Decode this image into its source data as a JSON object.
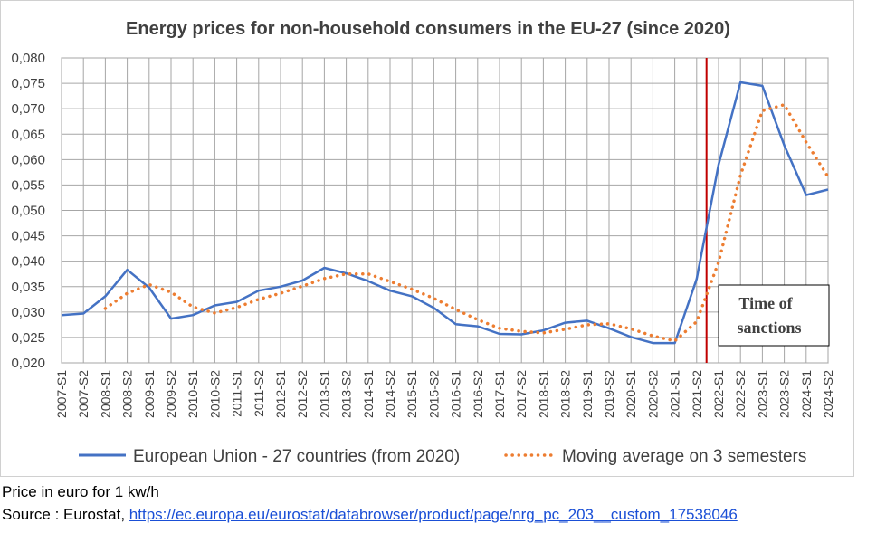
{
  "chart_data": {
    "type": "line",
    "title": "Energy prices for non-household consumers in the EU-27 (since 2020)",
    "categories": [
      "2007-S1",
      "2007-S2",
      "2008-S1",
      "2008-S2",
      "2009-S1",
      "2009-S2",
      "2010-S1",
      "2010-S2",
      "2011-S1",
      "2011-S2",
      "2012-S1",
      "2012-S2",
      "2013-S1",
      "2013-S2",
      "2014-S1",
      "2014-S2",
      "2015-S1",
      "2015-S2",
      "2016-S1",
      "2016-S2",
      "2017-S1",
      "2017-S2",
      "2018-S1",
      "2018-S2",
      "2019-S1",
      "2019-S2",
      "2020-S1",
      "2020-S2",
      "2021-S1",
      "2021-S2",
      "2022-S1",
      "2022-S2",
      "2023-S1",
      "2023-S2",
      "2024-S1",
      "2024-S2"
    ],
    "series": [
      {
        "name": "European Union - 27 countries (from 2020)",
        "color": "#4472c4",
        "style": "solid",
        "values": [
          0.0294,
          0.0297,
          0.0331,
          0.0383,
          0.0348,
          0.0287,
          0.0294,
          0.0313,
          0.032,
          0.0342,
          0.035,
          0.0362,
          0.0387,
          0.0376,
          0.0361,
          0.0342,
          0.0331,
          0.0308,
          0.0276,
          0.0272,
          0.0257,
          0.0256,
          0.0264,
          0.0279,
          0.0283,
          0.0268,
          0.0251,
          0.0239,
          0.0239,
          0.0365,
          0.059,
          0.0752,
          0.0745,
          0.0628,
          0.053,
          0.0541
        ]
      },
      {
        "name": "Moving average on 3 semesters",
        "color": "#ed7d31",
        "style": "dotted",
        "values": [
          null,
          null,
          0.0307,
          0.0337,
          0.0354,
          0.0339,
          0.031,
          0.0298,
          0.0309,
          0.0325,
          0.0337,
          0.0351,
          0.0366,
          0.0375,
          0.0375,
          0.036,
          0.0345,
          0.0327,
          0.0305,
          0.0285,
          0.0268,
          0.0262,
          0.0259,
          0.0266,
          0.0275,
          0.0277,
          0.0267,
          0.0253,
          0.0243,
          0.0281,
          0.0398,
          0.0569,
          0.0696,
          0.0708,
          0.0634,
          0.0566
        ]
      }
    ],
    "ylim": [
      0.02,
      0.08
    ],
    "yticks": [
      "0,020",
      "0,025",
      "0,030",
      "0,035",
      "0,040",
      "0,045",
      "0,050",
      "0,055",
      "0,060",
      "0,065",
      "0,070",
      "0,075",
      "0,080"
    ],
    "grid": true,
    "legend_position": "bottom",
    "marker_line": {
      "after_category": "2021-S2",
      "color": "#c00000"
    },
    "annotation": {
      "line1": "Time of",
      "line2": "sanctions"
    }
  },
  "footer": {
    "note": "Price in euro for 1 kw/h",
    "source_prefix": "Source : Eurostat, ",
    "source_link": "https://ec.europa.eu/eurostat/databrowser/product/page/nrg_pc_203__custom_17538046"
  }
}
